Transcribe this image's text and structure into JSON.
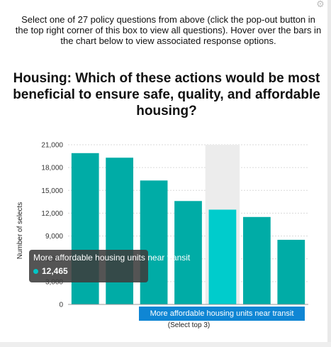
{
  "instructions": "Select one of 27 policy questions from above (click the pop-out button in the top right corner of this box to view all questions). Hover over the bars in the chart below to view associated response options.",
  "settings_icon": "gear-icon",
  "colors": {
    "bar": "#00aca6",
    "bar_highlight": "#00cccc",
    "hover_band": "#ececec",
    "tooltip_bg": "#3c3c3c",
    "badge_bg": "#0f86d4"
  },
  "chart_data": {
    "type": "bar",
    "title": "Housing: Which of these actions would be most beneficial to ensure safe, quality, and affordable housing?",
    "xlabel": "(Select top 3)",
    "ylabel": "Number of selects",
    "yticks": [
      0,
      3000,
      6000,
      9000,
      12000,
      15000,
      18000,
      21000
    ],
    "ytick_labels": [
      "0",
      "3,000",
      "6,000",
      "9,000",
      "12,000",
      "15,000",
      "18,000",
      "21,000"
    ],
    "ylim": [
      0,
      21000
    ],
    "grid": true,
    "values": [
      19900,
      19300,
      16300,
      13600,
      12465,
      11500,
      8500
    ],
    "highlight_index": 4,
    "hover_category": "More affordable housing units near transit"
  },
  "tooltip": {
    "label": "More affordable housing units near transit",
    "value": "12,465"
  }
}
